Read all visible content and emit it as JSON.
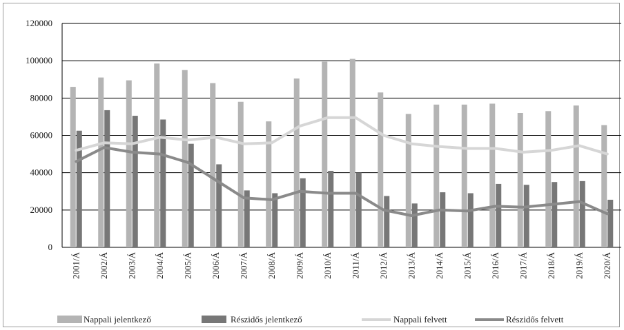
{
  "chart_data": {
    "type": "bar",
    "categories": [
      "2001/Á",
      "2002/Á",
      "2003/Á",
      "2004/Á",
      "2005/Á",
      "2006/Á",
      "2007/Á",
      "2008/Á",
      "2009/Á",
      "2010/Á",
      "2011/Á",
      "2012/Á",
      "2013/Á",
      "2014/Á",
      "2015/Á",
      "2016/Á",
      "2017/Á",
      "2018/Á",
      "2019/Á",
      "2020/Á"
    ],
    "ylim": [
      0,
      120000
    ],
    "yticks": [
      "0",
      "20000",
      "40000",
      "60000",
      "80000",
      "100000",
      "120000"
    ],
    "grid": true,
    "legend_position": "bottom",
    "series": [
      {
        "name": "Nappali jelentkező",
        "kind": "bar",
        "color": "#b4b4b4",
        "values": [
          86000,
          91000,
          89500,
          98500,
          95000,
          88000,
          78000,
          67500,
          90500,
          99500,
          101000,
          83000,
          71500,
          76500,
          76500,
          77000,
          72000,
          73000,
          76000,
          65500
        ]
      },
      {
        "name": "Részidős jelentkező",
        "kind": "bar",
        "color": "#777777",
        "values": [
          62500,
          73500,
          70500,
          68500,
          55500,
          44500,
          30500,
          29000,
          37000,
          41000,
          40000,
          27500,
          23500,
          29500,
          29000,
          34000,
          33500,
          35000,
          35500,
          25500
        ]
      },
      {
        "name": "Nappali felvett",
        "kind": "line",
        "color": "#d6d6d6",
        "values": [
          52000,
          56000,
          55500,
          59000,
          57500,
          59000,
          55500,
          56000,
          65000,
          69500,
          69500,
          60000,
          55500,
          54000,
          53000,
          53000,
          51000,
          52000,
          54500,
          50000
        ]
      },
      {
        "name": "Részidős felvett",
        "kind": "line",
        "color": "#8a8a8a",
        "values": [
          46000,
          53500,
          51000,
          50000,
          45500,
          36000,
          26500,
          25500,
          30000,
          29000,
          29000,
          20000,
          17000,
          20000,
          19500,
          22000,
          21500,
          23000,
          24500,
          18000
        ]
      }
    ]
  }
}
